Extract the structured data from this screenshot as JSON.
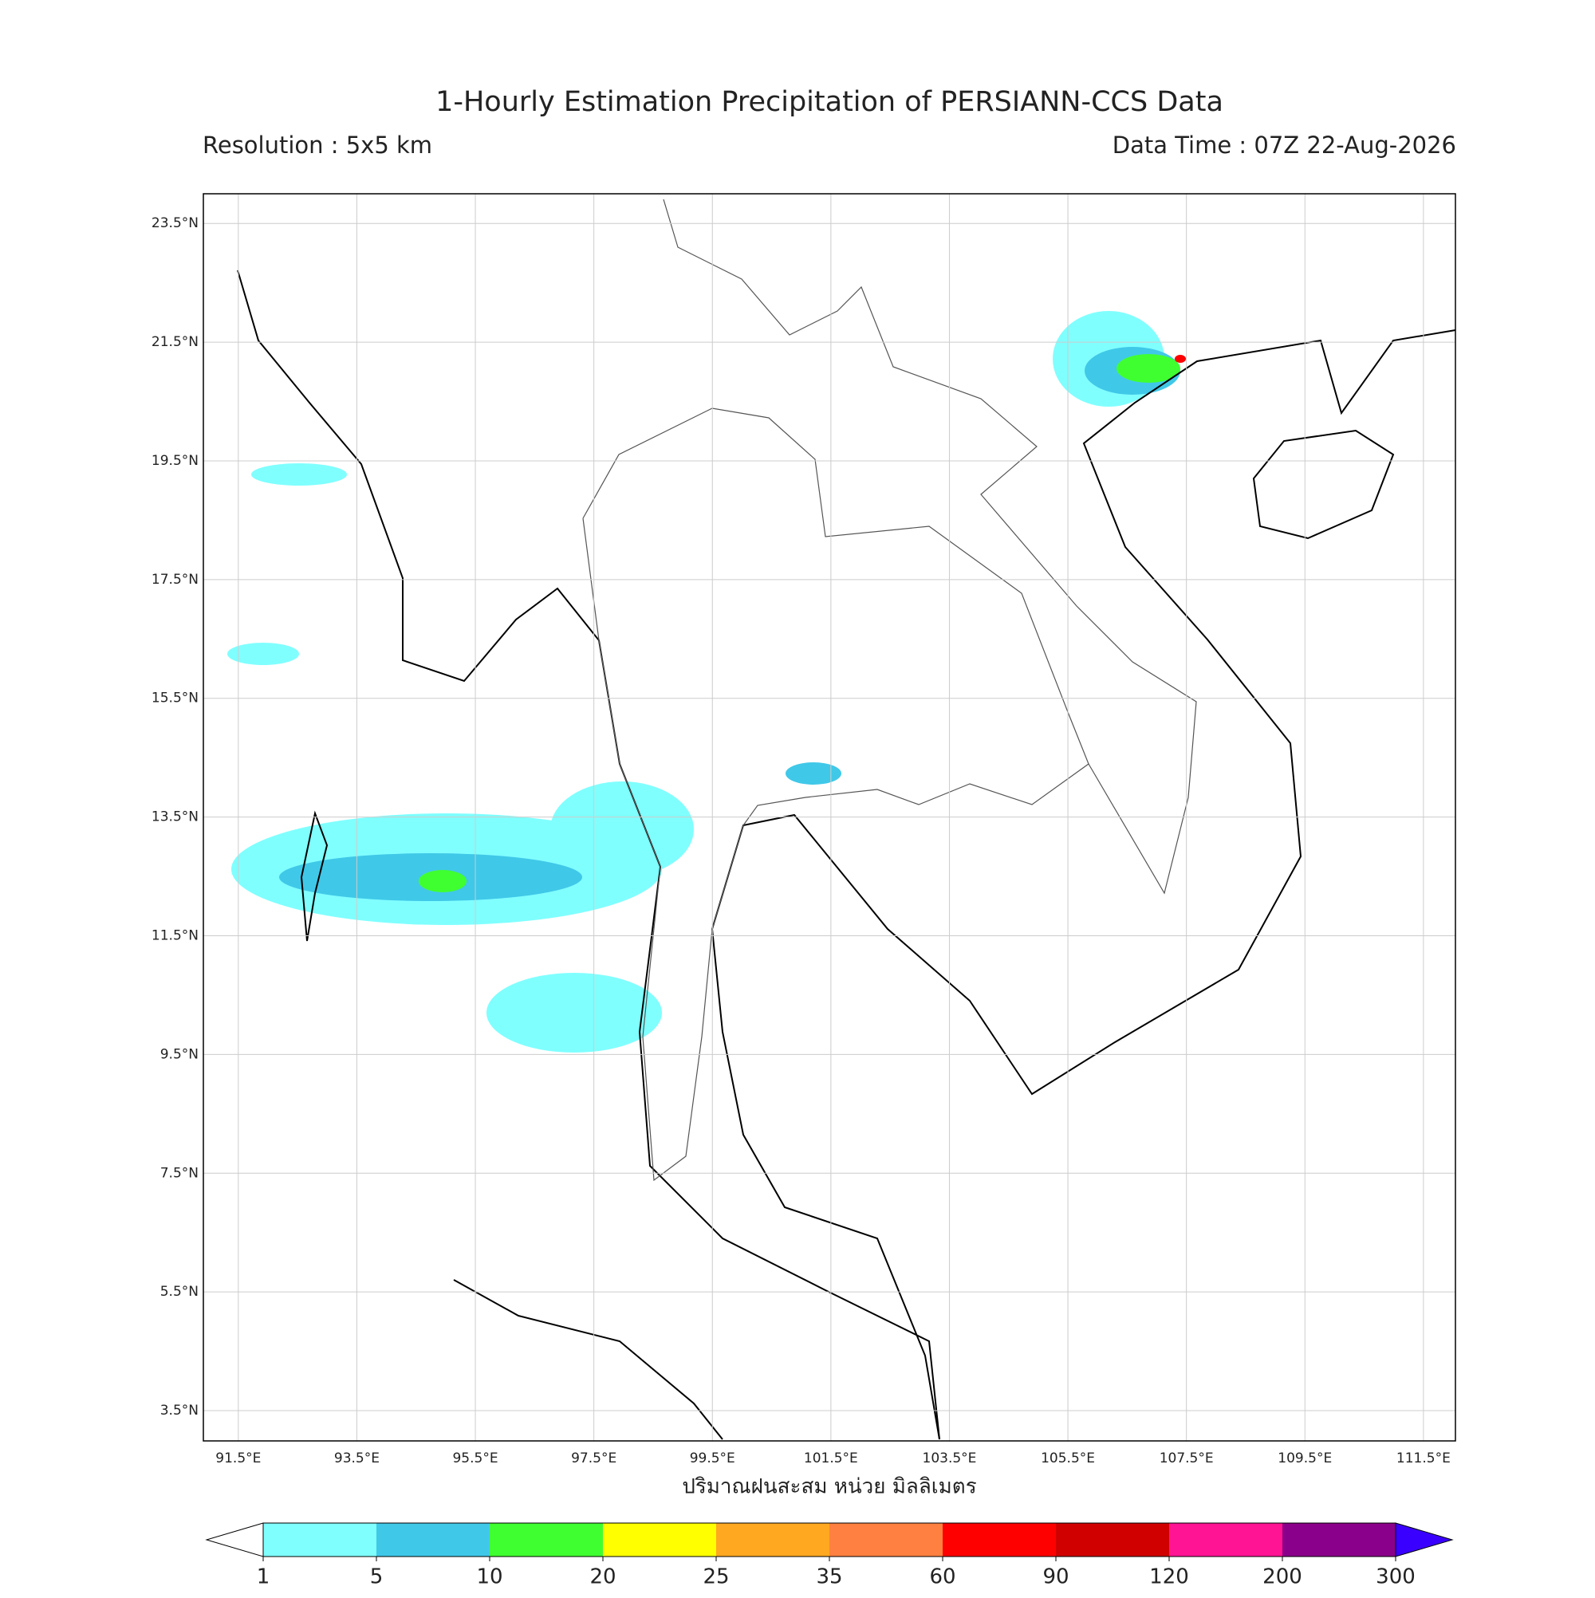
{
  "title": "1-Hourly Estimation Precipitation of PERSIANN-CCS Data",
  "resolution": "Resolution : 5x5 km",
  "data_time": "Data Time : 07Z 22-Aug-2026",
  "map": {
    "lonlim": [
      90.91,
      112.04
    ],
    "latlim": [
      2.99,
      24.0
    ],
    "lat_ticks": [
      {
        "value": 23.5,
        "label": "23.5°N"
      },
      {
        "value": 21.5,
        "label": "21.5°N"
      },
      {
        "value": 19.5,
        "label": "19.5°N"
      },
      {
        "value": 17.5,
        "label": "17.5°N"
      },
      {
        "value": 15.5,
        "label": "15.5°N"
      },
      {
        "value": 13.5,
        "label": "13.5°N"
      },
      {
        "value": 11.5,
        "label": "11.5°N"
      },
      {
        "value": 9.5,
        "label": "9.5°N"
      },
      {
        "value": 7.5,
        "label": "7.5°N"
      },
      {
        "value": 5.5,
        "label": "5.5°N"
      },
      {
        "value": 3.5,
        "label": "3.5°N"
      }
    ],
    "lon_ticks": [
      {
        "value": 91.5,
        "label": "91.5°E"
      },
      {
        "value": 93.5,
        "label": "93.5°E"
      },
      {
        "value": 95.5,
        "label": "95.5°E"
      },
      {
        "value": 97.5,
        "label": "97.5°E"
      },
      {
        "value": 99.5,
        "label": "99.5°E"
      },
      {
        "value": 101.5,
        "label": "101.5°E"
      },
      {
        "value": 103.5,
        "label": "103.5°E"
      },
      {
        "value": 105.5,
        "label": "105.5°E"
      },
      {
        "value": 107.5,
        "label": "107.5°E"
      },
      {
        "value": 109.5,
        "label": "109.5°E"
      },
      {
        "value": 111.5,
        "label": "111.5°E"
      }
    ],
    "grid": true
  },
  "colorbar": {
    "label": "ปริมาณฝนสะสม หน่วย มิลลิเมตร",
    "ticks": [
      1,
      5,
      10,
      20,
      25,
      35,
      60,
      90,
      120,
      200,
      300
    ],
    "colors": [
      "#80ffff",
      "#40c8e8",
      "#40ff30",
      "#ffff00",
      "#ffa820",
      "#ff8040",
      "#ff0000",
      "#d00000",
      "#ff1493",
      "#8b008b"
    ],
    "under_color": "#ffffff",
    "over_color": "#3a00ff"
  }
}
